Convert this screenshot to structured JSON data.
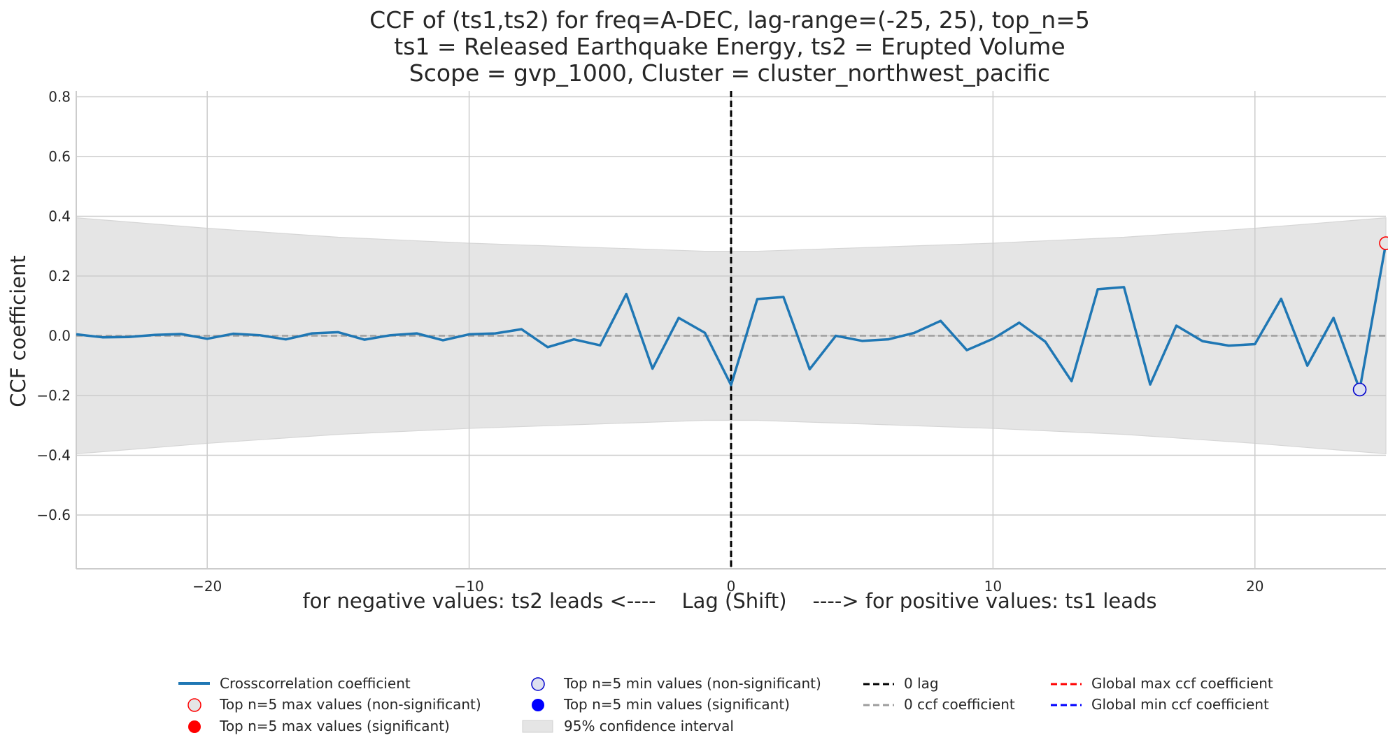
{
  "chart_data": {
    "type": "line",
    "title_lines": [
      "CCF of (ts1,ts2) for freq=A-DEC, lag-range=(-25, 25), top_n=5",
      "ts1 = Released Earthquake Energy, ts2 = Erupted Volume",
      "Scope = gvp_1000, Cluster = cluster_northwest_pacific"
    ],
    "xlabel": "for negative values: ts2 leads <----    Lag (Shift)    ----> for positive values: ts1 leads",
    "ylabel": "CCF coefficient",
    "xlim": [
      -25,
      25
    ],
    "ylim": [
      -0.78,
      0.82
    ],
    "xticks": [
      -20,
      -10,
      0,
      10,
      20
    ],
    "xtick_labels": [
      "−20",
      "−10",
      "0",
      "10",
      "20"
    ],
    "yticks": [
      -0.6,
      -0.4,
      -0.2,
      0.0,
      0.2,
      0.4,
      0.6,
      0.8
    ],
    "ytick_labels": [
      "−0.6",
      "−0.4",
      "−0.2",
      "0.0",
      "0.2",
      "0.4",
      "0.6",
      "0.8"
    ],
    "grid": true,
    "series": [
      {
        "name": "Crosscorrelation coefficient",
        "color": "#1f77b4",
        "x": [
          -25,
          -24,
          -23,
          -22,
          -21,
          -20,
          -19,
          -18,
          -17,
          -16,
          -15,
          -14,
          -13,
          -12,
          -11,
          -10,
          -9,
          -8,
          -7,
          -6,
          -5,
          -4,
          -3,
          -2,
          -1,
          0,
          1,
          2,
          3,
          4,
          5,
          6,
          7,
          8,
          9,
          10,
          11,
          12,
          13,
          14,
          15,
          16,
          17,
          18,
          19,
          20,
          21,
          22,
          23,
          24,
          25
        ],
        "values": [
          0.005,
          -0.005,
          -0.004,
          0.003,
          0.006,
          -0.01,
          0.007,
          0.002,
          -0.012,
          0.008,
          0.012,
          -0.013,
          0.002,
          0.008,
          -0.015,
          0.005,
          0.008,
          0.022,
          -0.038,
          -0.012,
          -0.032,
          0.14,
          -0.11,
          0.06,
          0.01,
          -0.165,
          0.123,
          0.13,
          -0.112,
          0.0,
          -0.017,
          -0.012,
          0.01,
          0.05,
          -0.048,
          -0.01,
          0.044,
          -0.02,
          -0.152,
          0.156,
          0.163,
          -0.163,
          0.034,
          -0.018,
          -0.033,
          -0.028,
          0.124,
          -0.1,
          0.06,
          -0.18,
          0.31
        ]
      }
    ],
    "confidence_interval": {
      "label": "95% confidence interval",
      "color": "#e5e5e5",
      "x": [
        -25,
        -20,
        -15,
        -10,
        -5,
        -1,
        0,
        1,
        5,
        10,
        15,
        20,
        25
      ],
      "upper": [
        0.395,
        0.36,
        0.33,
        0.31,
        0.295,
        0.283,
        0.283,
        0.283,
        0.295,
        0.31,
        0.33,
        0.36,
        0.395
      ]
    },
    "markers": [
      {
        "kind": "top-max-non-significant",
        "x": 25,
        "y": 0.31,
        "edge": "#ff0000",
        "fill": "#e5e5e5"
      },
      {
        "kind": "top-min-non-significant",
        "x": 24,
        "y": -0.18,
        "edge": "#0000cc",
        "fill": "#dde0f0"
      }
    ],
    "reference_lines": {
      "zero_lag": {
        "x": 0,
        "color": "#000000"
      },
      "zero_ccf": {
        "y": 0,
        "color": "#9e9e9e"
      }
    },
    "legend_position": "bottom-center",
    "legend": [
      {
        "label": "Crosscorrelation coefficient",
        "kind": "line",
        "color": "#1f77b4"
      },
      {
        "label": "Top n=5 max values (non-significant)",
        "kind": "hollow-marker",
        "color": "#ff0000"
      },
      {
        "label": "Top n=5 max values (significant)",
        "kind": "filled-marker",
        "color": "#ff0000"
      },
      {
        "label": "Top n=5 min values (non-significant)",
        "kind": "hollow-marker",
        "color": "#0000cc"
      },
      {
        "label": "Top n=5 min values (significant)",
        "kind": "filled-marker",
        "color": "#0000ff"
      },
      {
        "label": "95% confidence interval",
        "kind": "patch",
        "color": "#e5e5e5"
      },
      {
        "label": "0 lag",
        "kind": "dashed-line",
        "color": "#000000"
      },
      {
        "label": "0 ccf coefficient",
        "kind": "dashed-line",
        "color": "#9e9e9e"
      },
      {
        "label": "Global max ccf coefficient",
        "kind": "dashed-line",
        "color": "#ff0000"
      },
      {
        "label": "Global min ccf coefficient",
        "kind": "dashed-line",
        "color": "#0000ff"
      }
    ]
  }
}
